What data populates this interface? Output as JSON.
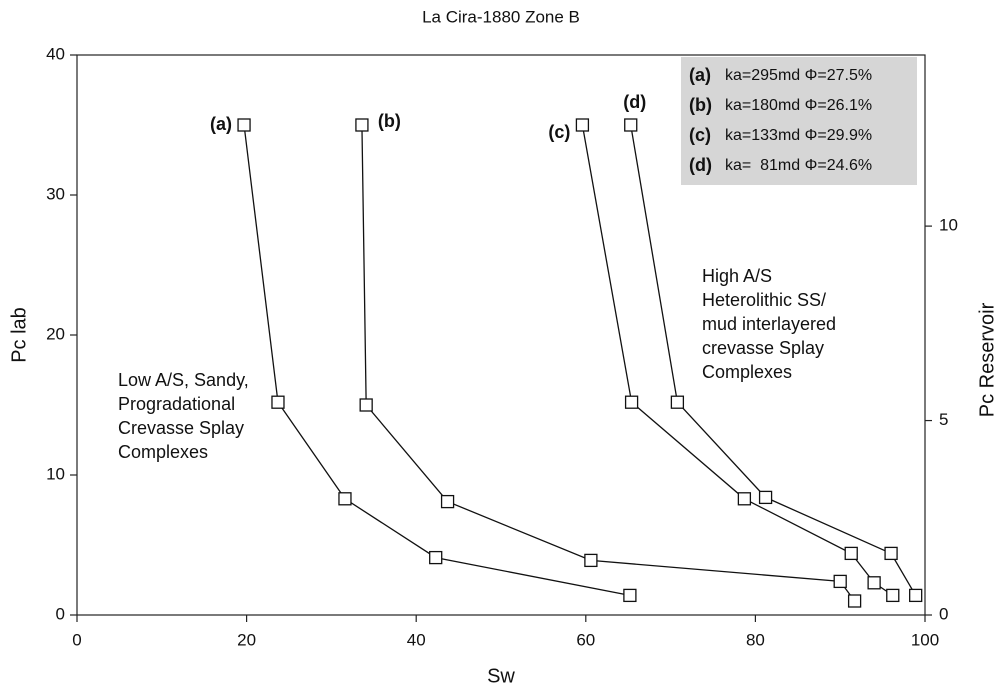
{
  "chart_data": {
    "type": "line",
    "title": "La Cira-1880 Zone B",
    "x_label": "Sw",
    "y_label": "Pc lab",
    "y2_label": "Pc Reservoir",
    "xlim": [
      0,
      100
    ],
    "xticks": [
      0,
      20,
      40,
      60,
      80,
      100
    ],
    "ylim": [
      0,
      40
    ],
    "yticks": [
      0,
      10,
      20,
      30,
      40
    ],
    "y2lim": [
      0,
      14.4
    ],
    "y2ticks": [
      0,
      5,
      10
    ],
    "legend_position": "upper right",
    "series": [
      {
        "name": "(a)",
        "description": "ka=295md Φ=27.5%",
        "color": "#111111",
        "x": [
          19.7,
          23.7,
          31.6,
          42.3,
          65.2
        ],
        "values": [
          35,
          15.2,
          8.3,
          4.1,
          1.4
        ]
      },
      {
        "name": "(b)",
        "description": "ka=180md Φ=26.1%",
        "color": "#111111",
        "x": [
          33.6,
          34.1,
          43.7,
          60.6,
          90,
          91.7
        ],
        "values": [
          35,
          15,
          8.1,
          3.9,
          2.4,
          1.0
        ]
      },
      {
        "name": "(c)",
        "description": "ka=133md Φ=29.9%",
        "color": "#111111",
        "x": [
          59.6,
          65.4,
          78.7,
          91.3,
          94,
          96.2
        ],
        "values": [
          35,
          15.2,
          8.3,
          4.4,
          2.3,
          1.4
        ]
      },
      {
        "name": "(d)",
        "description": "ka=  81md Φ=24.6%",
        "color": "#111111",
        "x": [
          65.3,
          70.8,
          81.2,
          96,
          98.9
        ],
        "values": [
          35,
          15.2,
          8.4,
          4.4,
          1.4
        ]
      }
    ],
    "annotations": [
      {
        "lines": [
          "Low A/S, Sandy,",
          "Progradational",
          "Crevasse Splay",
          "Complexes"
        ]
      },
      {
        "lines": [
          "High A/S",
          "Heterolithic SS/",
          "mud interlayered",
          "crevasse Splay",
          "Complexes"
        ]
      }
    ]
  }
}
